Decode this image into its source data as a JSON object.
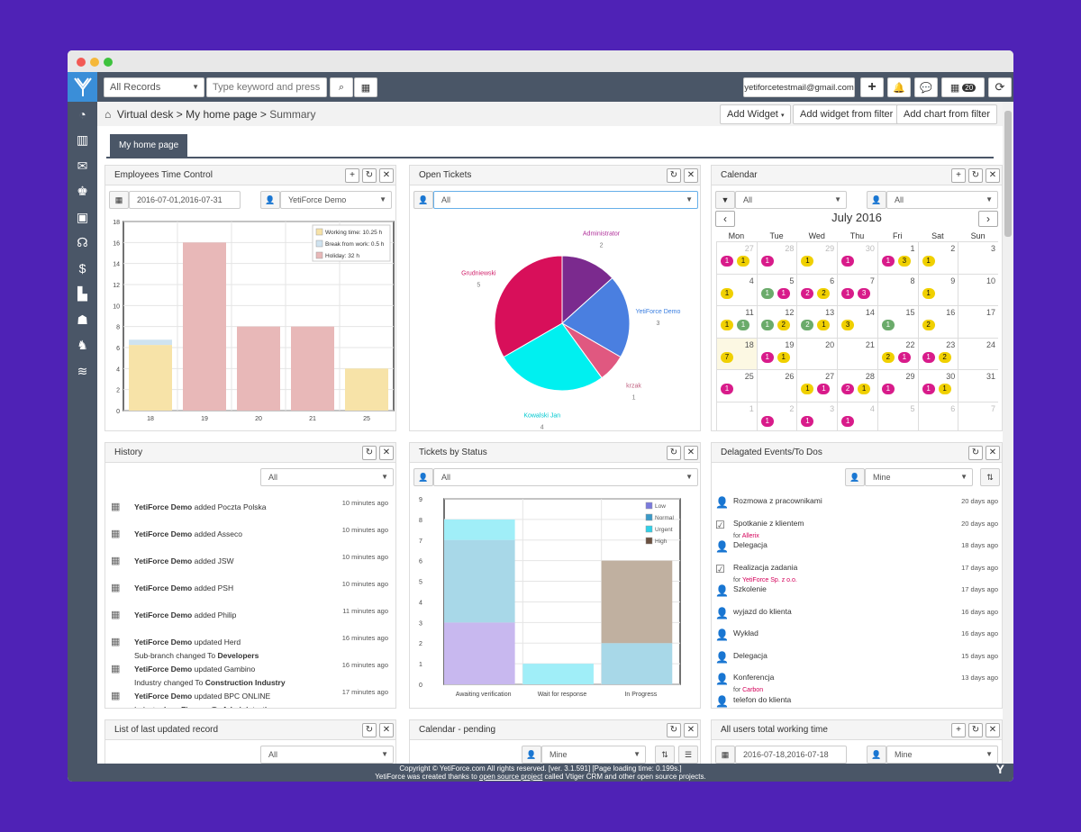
{
  "topbar": {
    "records_select": "All Records",
    "search_placeholder": "Type keyword and press en",
    "email": "yetiforcetestmail@gmail.com",
    "calendar_count": "20"
  },
  "breadcrumb": {
    "item1": "Virtual desk",
    "sep1": ">",
    "item2": "My home page",
    "sep2": ">",
    "item3": "Summary"
  },
  "actions": {
    "add_widget": "Add Widget",
    "add_widget_filter": "Add widget from filter",
    "add_chart_filter": "Add chart from filter"
  },
  "tab": {
    "label": "My home page"
  },
  "emp_time": {
    "title": "Employees Time Control",
    "date_range": "2016-07-01,2016-07-31",
    "user": "YetiForce Demo",
    "chart_data": {
      "type": "bar",
      "categories": [
        "18",
        "19",
        "20",
        "21",
        "25"
      ],
      "series": [
        {
          "name": "Working time: 10.25 h",
          "values": [
            6.25,
            0,
            0,
            0,
            4
          ]
        },
        {
          "name": "Break from work: 0.5 h",
          "values": [
            0.5,
            0,
            0,
            0,
            0
          ]
        },
        {
          "name": "Holiday: 32 h",
          "values": [
            0,
            16,
            8,
            8,
            0
          ]
        }
      ],
      "yticks": [
        "0",
        "2",
        "4",
        "6",
        "8",
        "10",
        "12",
        "14",
        "16",
        "18"
      ],
      "ylim": [
        0,
        18
      ],
      "colors": [
        "#f7e3a8",
        "#cfe3f0",
        "#e8b8b8"
      ],
      "legend": "top-right"
    }
  },
  "open_tickets": {
    "title": "Open Tickets",
    "filter": "All",
    "chart_data": {
      "type": "pie",
      "labels": [
        "Administrator",
        "YetiForce Demo",
        "krzak",
        "Kowalski Jan",
        "Grudniewski"
      ],
      "values": [
        2,
        3,
        1,
        4,
        5
      ],
      "colors": [
        "#7b2a8e",
        "#4a7fe0",
        "#e05880",
        "#00f0f0",
        "#d80f5a"
      ],
      "label_colors": [
        "#b0309a",
        "#3a7ee0",
        "#c06080",
        "#00c8d0",
        "#d0206a"
      ]
    }
  },
  "calendar": {
    "title": "Calendar",
    "filter1": "All",
    "filter2": "All",
    "month": "July 2016",
    "days": [
      "Mon",
      "Tue",
      "Wed",
      "Thu",
      "Fri",
      "Sat",
      "Sun"
    ],
    "weeks": [
      [
        [
          "27",
          1,
          [
            [
              1,
              1
            ],
            [
              2,
              1
            ]
          ]
        ],
        [
          "28",
          1,
          [
            [
              1,
              1
            ]
          ]
        ],
        [
          "29",
          1,
          [
            [
              2,
              1
            ]
          ]
        ],
        [
          "30",
          1,
          [
            [
              1,
              1
            ]
          ]
        ],
        [
          "1",
          0,
          [
            [
              1,
              1
            ],
            [
              2,
              3
            ]
          ]
        ],
        [
          "2",
          0,
          [
            [
              2,
              1
            ]
          ]
        ],
        [
          "3",
          0,
          []
        ]
      ],
      [
        [
          "4",
          0,
          [
            [
              2,
              1
            ]
          ]
        ],
        [
          "5",
          0,
          [
            [
              3,
              1
            ],
            [
              1,
              1
            ]
          ]
        ],
        [
          "6",
          0,
          [
            [
              1,
              2
            ],
            [
              2,
              2
            ]
          ]
        ],
        [
          "7",
          0,
          [
            [
              1,
              1
            ],
            [
              1,
              3
            ]
          ]
        ],
        [
          "8",
          0,
          []
        ],
        [
          "9",
          0,
          [
            [
              2,
              1
            ]
          ]
        ],
        [
          "10",
          0,
          []
        ]
      ],
      [
        [
          "11",
          0,
          [
            [
              2,
              1
            ],
            [
              3,
              1
            ]
          ]
        ],
        [
          "12",
          0,
          [
            [
              3,
              1
            ],
            [
              2,
              2
            ]
          ]
        ],
        [
          "13",
          0,
          [
            [
              3,
              2
            ],
            [
              2,
              1
            ]
          ]
        ],
        [
          "14",
          0,
          [
            [
              2,
              3
            ]
          ]
        ],
        [
          "15",
          0,
          [
            [
              3,
              1
            ]
          ]
        ],
        [
          "16",
          0,
          [
            [
              2,
              2
            ]
          ]
        ],
        [
          "17",
          0,
          []
        ]
      ],
      [
        [
          "18",
          0,
          [
            [
              2,
              7
            ]
          ]
        ],
        [
          "19",
          0,
          [
            [
              1,
              1
            ],
            [
              2,
              1
            ]
          ]
        ],
        [
          "20",
          0,
          []
        ],
        [
          "21",
          0,
          []
        ],
        [
          "22",
          0,
          [
            [
              2,
              2
            ],
            [
              1,
              1
            ]
          ]
        ],
        [
          "23",
          0,
          [
            [
              1,
              1
            ],
            [
              2,
              2
            ]
          ]
        ],
        [
          "24",
          0,
          []
        ]
      ],
      [
        [
          "25",
          0,
          [
            [
              1,
              1
            ]
          ]
        ],
        [
          "26",
          0,
          []
        ],
        [
          "27",
          0,
          [
            [
              2,
              1
            ],
            [
              1,
              1
            ]
          ]
        ],
        [
          "28",
          0,
          [
            [
              1,
              2
            ],
            [
              2,
              1
            ]
          ]
        ],
        [
          "29",
          0,
          [
            [
              1,
              1
            ]
          ]
        ],
        [
          "30",
          0,
          [
            [
              1,
              1
            ],
            [
              2,
              1
            ]
          ]
        ],
        [
          "31",
          0,
          []
        ]
      ],
      [
        [
          "1",
          1,
          []
        ],
        [
          "2",
          1,
          [
            [
              1,
              1
            ]
          ]
        ],
        [
          "3",
          1,
          [
            [
              1,
              1
            ]
          ]
        ],
        [
          "4",
          1,
          [
            [
              1,
              1
            ]
          ]
        ],
        [
          "5",
          1,
          []
        ],
        [
          "6",
          1,
          []
        ],
        [
          "7",
          1,
          []
        ]
      ]
    ]
  },
  "history": {
    "title": "History",
    "filter": "All",
    "items": [
      {
        "who": "YetiForce Demo",
        "action": " added Poczta Polska",
        "l2a": "",
        "l2b": "",
        "l2c": "",
        "l2d": "",
        "time": "10 minutes ago"
      },
      {
        "who": "YetiForce Demo",
        "action": " added Asseco",
        "l2a": "",
        "l2b": "",
        "l2c": "",
        "l2d": "",
        "time": "10 minutes ago"
      },
      {
        "who": "YetiForce Demo",
        "action": " added JSW",
        "l2a": "",
        "l2b": "",
        "l2c": "",
        "l2d": "",
        "time": "10 minutes ago"
      },
      {
        "who": "YetiForce Demo",
        "action": " added PSH",
        "l2a": "",
        "l2b": "",
        "l2c": "",
        "l2d": "",
        "time": "10 minutes ago"
      },
      {
        "who": "YetiForce Demo",
        "action": " added Philip",
        "l2a": "",
        "l2b": "",
        "l2c": "",
        "l2d": "",
        "time": "11 minutes ago"
      },
      {
        "who": "YetiForce Demo",
        "action": " updated Herd",
        "l2a": "Sub-branch  changed To ",
        "l2b": "Developers",
        "l2c": "",
        "l2d": "",
        "time": "16 minutes ago"
      },
      {
        "who": "YetiForce Demo",
        "action": " updated Gambino",
        "l2a": "Industry  changed To ",
        "l2b": "Construction Industry",
        "l2c": "",
        "l2d": "",
        "time": "16 minutes ago"
      },
      {
        "who": "YetiForce Demo",
        "action": " updated BPC ONLINE",
        "l2a": "Industry  from ",
        "l2b": "Finance",
        "l2c": " To ",
        "l2d": "Administration",
        "time": "17 minutes ago"
      }
    ]
  },
  "tickets_status": {
    "title": "Tickets by Status",
    "filter": "All",
    "chart_data": {
      "type": "bar",
      "categories": [
        "Awaiting verification",
        "Wait for response",
        "In Progress"
      ],
      "series": [
        {
          "name": "Low",
          "values": [
            3,
            0,
            0
          ]
        },
        {
          "name": "Normal",
          "values": [
            4,
            0,
            2
          ]
        },
        {
          "name": "Urgent",
          "values": [
            1,
            1,
            0
          ]
        },
        {
          "name": "High",
          "values": [
            0,
            0,
            4
          ]
        }
      ],
      "colors": [
        "#c8b8ef",
        "#a8d8e8",
        "#a0eef8",
        "#c0b0a0"
      ],
      "legend_colors": [
        "#7a7adc",
        "#3a9ac8",
        "#30d0e8",
        "#6a5040"
      ],
      "yticks": [
        "0",
        "1",
        "2",
        "3",
        "4",
        "5",
        "6",
        "7",
        "8",
        "9"
      ],
      "ylim": [
        0,
        9
      ],
      "legend": "top-right"
    }
  },
  "delegated": {
    "title": "Delagated Events/To Dos",
    "filter": "Mine",
    "items": [
      {
        "icon": "user",
        "title": "Rozmowa z pracownikami",
        "for": "",
        "forv": "",
        "time": "20 days ago"
      },
      {
        "icon": "check",
        "title": "Spotkanie z klientem",
        "for": "for ",
        "forv": "Allerix",
        "time": "20 days ago"
      },
      {
        "icon": "user",
        "title": "Delegacja",
        "for": "",
        "forv": "",
        "time": "18 days ago"
      },
      {
        "icon": "check",
        "title": "Realizacja zadania",
        "for": "for ",
        "forv": "YetiForce Sp. z o.o.",
        "time": "17 days ago"
      },
      {
        "icon": "user",
        "title": "Szkolenie",
        "for": "",
        "forv": "",
        "time": "17 days ago"
      },
      {
        "icon": "user",
        "title": "wyjazd do klienta",
        "for": "",
        "forv": "",
        "time": "16 days ago"
      },
      {
        "icon": "user",
        "title": "Wykład",
        "for": "",
        "forv": "",
        "time": "16 days ago"
      },
      {
        "icon": "user",
        "title": "Delegacja",
        "for": "",
        "forv": "",
        "time": "15 days ago"
      },
      {
        "icon": "user",
        "title": "Konferencja",
        "for": "for ",
        "forv": "Carbon",
        "time": "13 days ago"
      },
      {
        "icon": "user",
        "title": "telefon do klienta",
        "for": "",
        "forv": "",
        "time": ""
      }
    ]
  },
  "last_updated": {
    "title": "List of last updated record",
    "filter": "All"
  },
  "cal_pending": {
    "title": "Calendar - pending",
    "filter": "Mine"
  },
  "all_users": {
    "title": "All users total working time",
    "date_range": "2016-07-18,2016-07-18",
    "filter": "Mine"
  },
  "footer": {
    "line1": "Copyright © YetiForce.com All rights reserved. [ver. 3.1.591] [Page loading time: 0.199s.]",
    "line2a": "YetiForce was created thanks to ",
    "line2b": "open source project",
    "line2c": " called Vtiger CRM and other open source projects."
  }
}
